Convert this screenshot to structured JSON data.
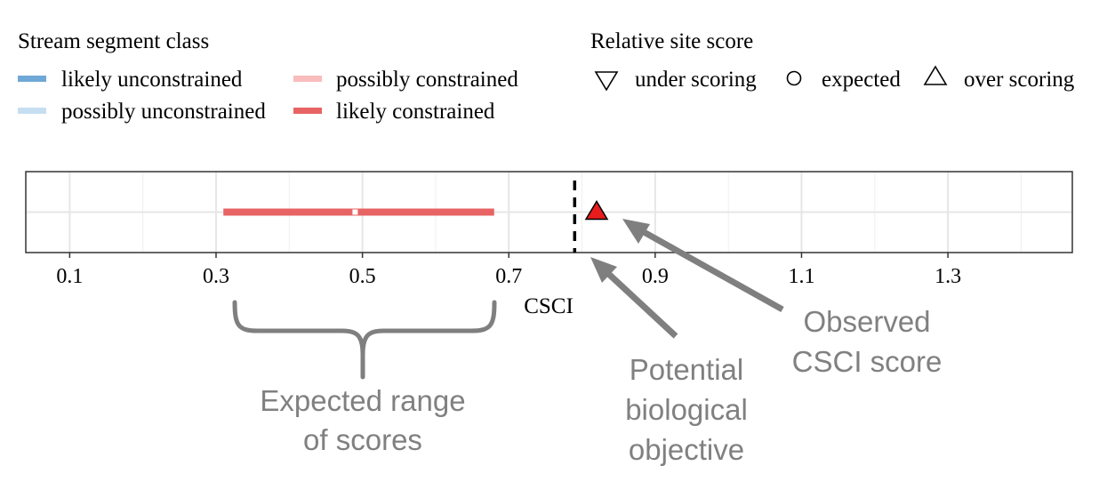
{
  "legend_stream": {
    "title": "Stream segment class",
    "items": [
      {
        "label": "likely unconstrained",
        "color": "#6fa8d6"
      },
      {
        "label": "possibly unconstrained",
        "color": "#c6dff0"
      },
      {
        "label": "possibly constrained",
        "color": "#f9bcbc"
      },
      {
        "label": "likely constrained",
        "color": "#e86464"
      }
    ]
  },
  "legend_score": {
    "title": "Relative site score",
    "items": [
      {
        "label": "under scoring",
        "icon": "triangle-down-icon"
      },
      {
        "label": "expected",
        "icon": "circle-icon"
      },
      {
        "label": "over scoring",
        "icon": "triangle-up-icon"
      }
    ]
  },
  "chart_data": {
    "type": "scatter",
    "xlabel": "CSCI",
    "xlim": [
      0.04,
      1.47
    ],
    "x_ticks": [
      0.1,
      0.3,
      0.5,
      0.7,
      0.9,
      1.1,
      1.3
    ],
    "x_tick_labels": [
      "0.1",
      "0.3",
      "0.5",
      "0.7",
      "0.9",
      "1.1",
      "1.3"
    ],
    "grid": true,
    "expected_range": {
      "low": 0.31,
      "high": 0.68,
      "median": 0.49,
      "class": "likely constrained",
      "color": "#e86464"
    },
    "observed": {
      "x": 0.82,
      "shape": "over scoring",
      "color": "#e81c1c"
    },
    "threshold": {
      "x": 0.79
    }
  },
  "annotations": {
    "range": [
      "Expected range",
      "of scores"
    ],
    "objective": [
      "Potential",
      "biological",
      "objective"
    ],
    "observed": [
      "Observed",
      "CSCI score"
    ],
    "color": "#808080"
  }
}
